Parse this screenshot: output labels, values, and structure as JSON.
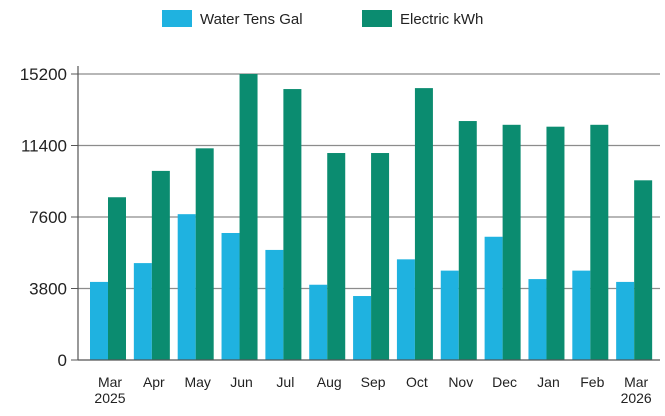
{
  "chart_data": {
    "type": "bar",
    "categories": [
      [
        "Mar",
        "2025"
      ],
      [
        "Apr"
      ],
      [
        "May"
      ],
      [
        "Jun"
      ],
      [
        "Jul"
      ],
      [
        "Aug"
      ],
      [
        "Sep"
      ],
      [
        "Oct"
      ],
      [
        "Nov"
      ],
      [
        "Dec"
      ],
      [
        "Jan"
      ],
      [
        "Feb"
      ],
      [
        "Mar",
        "2026"
      ]
    ],
    "series": [
      {
        "name": "Water Tens Gal",
        "color": "#1fb2e0",
        "values": [
          4150,
          5150,
          7750,
          6750,
          5850,
          4000,
          3400,
          5350,
          4750,
          6550,
          4300,
          4750,
          4150
        ]
      },
      {
        "name": "Electric kWh",
        "color": "#0b8c70",
        "values": [
          8650,
          10050,
          11250,
          15200,
          14400,
          11000,
          11000,
          14450,
          12700,
          12500,
          12400,
          12500,
          9550
        ]
      }
    ],
    "yticks": [
      0,
      3800,
      7600,
      11400,
      15200
    ],
    "ylim": [
      0,
      15200
    ],
    "grid": true,
    "legend": "top-center",
    "title": "",
    "xlabel": "",
    "ylabel": ""
  }
}
